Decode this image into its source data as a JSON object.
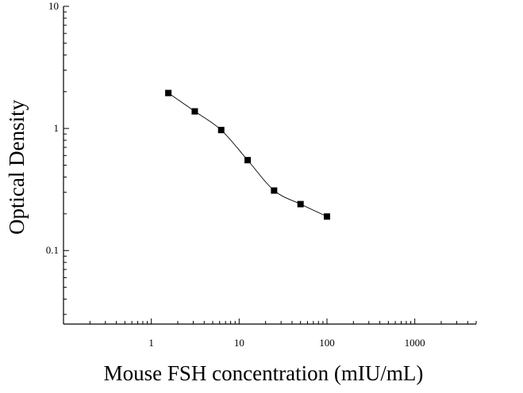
{
  "chart_data": {
    "type": "scatter",
    "xlabel": "Mouse FSH concentration (mIU/mL)",
    "ylabel": "Optical Density",
    "xscale": "log",
    "yscale": "log",
    "xlim": [
      0.1,
      5000
    ],
    "ylim": [
      0.025,
      10
    ],
    "x_ticks": [
      {
        "value": 1,
        "label": "1"
      },
      {
        "value": 10,
        "label": "10"
      },
      {
        "value": 100,
        "label": "100"
      },
      {
        "value": 1000,
        "label": "1000"
      }
    ],
    "y_ticks": [
      {
        "value": 0.1,
        "label": "0.1"
      },
      {
        "value": 1,
        "label": "1"
      },
      {
        "value": 10,
        "label": "10"
      }
    ],
    "grid": false,
    "legend": "none",
    "series": [
      {
        "marker": "square",
        "color": "#000000",
        "x": [
          1.5625,
          3.125,
          6.25,
          12.5,
          25,
          50,
          100
        ],
        "y": [
          1.95,
          1.38,
          0.97,
          0.55,
          0.31,
          0.24,
          0.19
        ]
      }
    ],
    "fit_curve": true
  }
}
